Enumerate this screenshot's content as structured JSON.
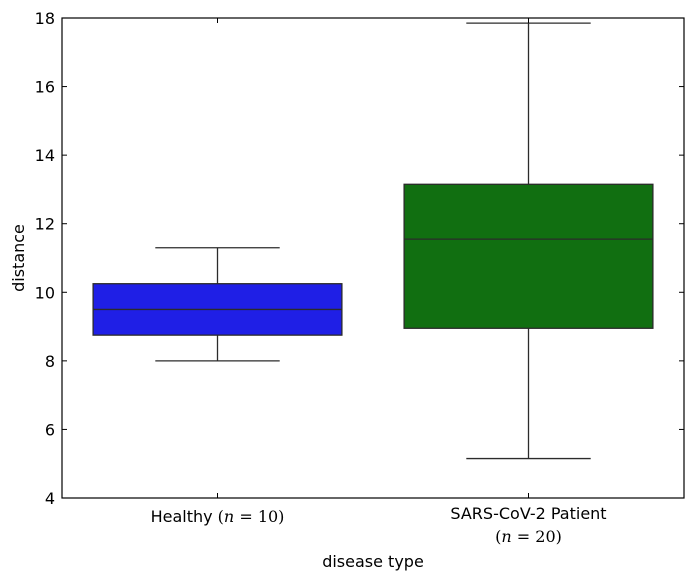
{
  "chart_data": {
    "type": "boxplot",
    "title": "",
    "xlabel": "disease type",
    "ylabel": "distance",
    "ylim": [
      4,
      18
    ],
    "yticks": [
      4,
      6,
      8,
      10,
      12,
      14,
      16,
      18
    ],
    "grid": false,
    "legend": "none",
    "categories": [
      {
        "label": "Healthy",
        "n_label": "(n = 10)",
        "n": 10,
        "color": "#1f1fe6",
        "whisker_low": 8.0,
        "q1": 8.75,
        "median": 9.5,
        "q3": 10.25,
        "whisker_high": 11.3
      },
      {
        "label": "SARS-CoV-2 Patient",
        "n_label": "(n = 20)",
        "n": 20,
        "color": "#116f11",
        "whisker_low": 5.15,
        "q1": 8.95,
        "median": 11.55,
        "q3": 13.15,
        "whisker_high": 17.85
      }
    ]
  }
}
